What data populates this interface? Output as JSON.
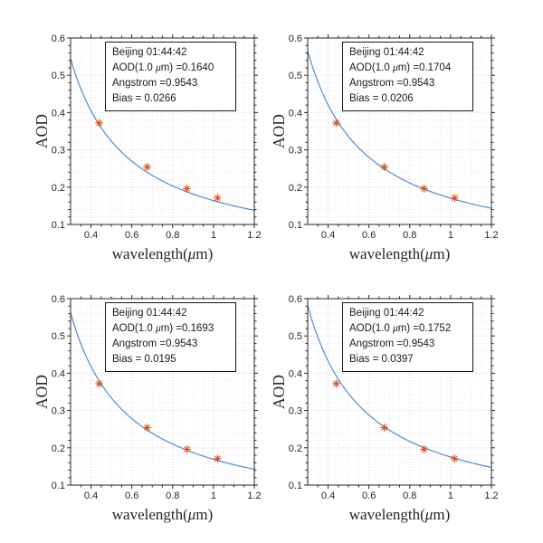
{
  "figure": {
    "background": "#ffffff",
    "layout": "2x2-subplots",
    "colors": {
      "curve": "#4a90d0",
      "marker": "#d95319",
      "axis": "#262626",
      "tick_label": "#262626",
      "grid_major": "#d2d2d2",
      "grid_minor": "#eaeaea",
      "annotation_border": "#1a1a1a",
      "annotation_bg": "#ffffff"
    },
    "axes": {
      "xlabel_pre": "wavelength(",
      "xlabel_mu": "μ",
      "xlabel_post": "m)",
      "ylabel": "AOD",
      "xlim": [
        0.3,
        1.2
      ],
      "ylim": [
        0.1,
        0.6
      ],
      "xtick_values": [
        0.4,
        0.6,
        0.8,
        1.0,
        1.2
      ],
      "xtick_labels": [
        "0.4",
        "0.6",
        "0.8",
        "1",
        "1.2"
      ],
      "ytick_values": [
        0.1,
        0.2,
        0.3,
        0.4,
        0.5,
        0.6
      ],
      "ytick_labels": [
        "0.1",
        "0.2",
        "0.3",
        "0.4",
        "0.5",
        "0.6"
      ],
      "x_minor_step": 0.05,
      "y_minor_step": 0.02,
      "grid": "major+minor dotted",
      "tick_dir": "out"
    }
  },
  "chart_data": [
    {
      "type": "line+scatter",
      "panel": "top-left",
      "fit": {
        "aod_1um": 0.164,
        "angstrom": 0.9543,
        "bias": 0.0266
      },
      "scatter_x": [
        0.44,
        0.675,
        0.87,
        1.02
      ],
      "scatter_y": [
        0.372,
        0.254,
        0.196,
        0.171
      ],
      "annotation": {
        "line1": "Beijing 01:44:42",
        "line2_pre": "AOD(1.0 ",
        "line2_mu": "μ",
        "line2_post": "m) =0.1640",
        "line3": "Angstrom =0.9543",
        "line4": "Bias = 0.0266"
      }
    },
    {
      "type": "line+scatter",
      "panel": "top-right",
      "fit": {
        "aod_1um": 0.1704,
        "angstrom": 0.9543,
        "bias": 0.0206
      },
      "scatter_x": [
        0.44,
        0.675,
        0.87,
        1.02
      ],
      "scatter_y": [
        0.372,
        0.254,
        0.196,
        0.171
      ],
      "annotation": {
        "line1": "Beijing 01:44:42",
        "line2_pre": "AOD(1.0 ",
        "line2_mu": "μ",
        "line2_post": "m) =0.1704",
        "line3": "Angstrom =0.9543",
        "line4": "Bias = 0.0206"
      }
    },
    {
      "type": "line+scatter",
      "panel": "bottom-left",
      "fit": {
        "aod_1um": 0.1693,
        "angstrom": 0.9543,
        "bias": 0.0195
      },
      "scatter_x": [
        0.44,
        0.675,
        0.87,
        1.02
      ],
      "scatter_y": [
        0.372,
        0.254,
        0.196,
        0.171
      ],
      "annotation": {
        "line1": "Beijing 01:44:42",
        "line2_pre": "AOD(1.0 ",
        "line2_mu": "μ",
        "line2_post": "m) =0.1693",
        "line3": "Angstrom =0.9543",
        "line4": "Bias = 0.0195"
      }
    },
    {
      "type": "line+scatter",
      "panel": "bottom-right",
      "fit": {
        "aod_1um": 0.1752,
        "angstrom": 0.9543,
        "bias": 0.0397
      },
      "scatter_x": [
        0.44,
        0.675,
        0.87,
        1.02
      ],
      "scatter_y": [
        0.372,
        0.254,
        0.196,
        0.171
      ],
      "annotation": {
        "line1": "Beijing 01:44:42",
        "line2_pre": "AOD(1.0 ",
        "line2_mu": "μ",
        "line2_post": "m) =0.1752",
        "line3": "Angstrom =0.9543",
        "line4": "Bias = 0.0397"
      }
    }
  ]
}
